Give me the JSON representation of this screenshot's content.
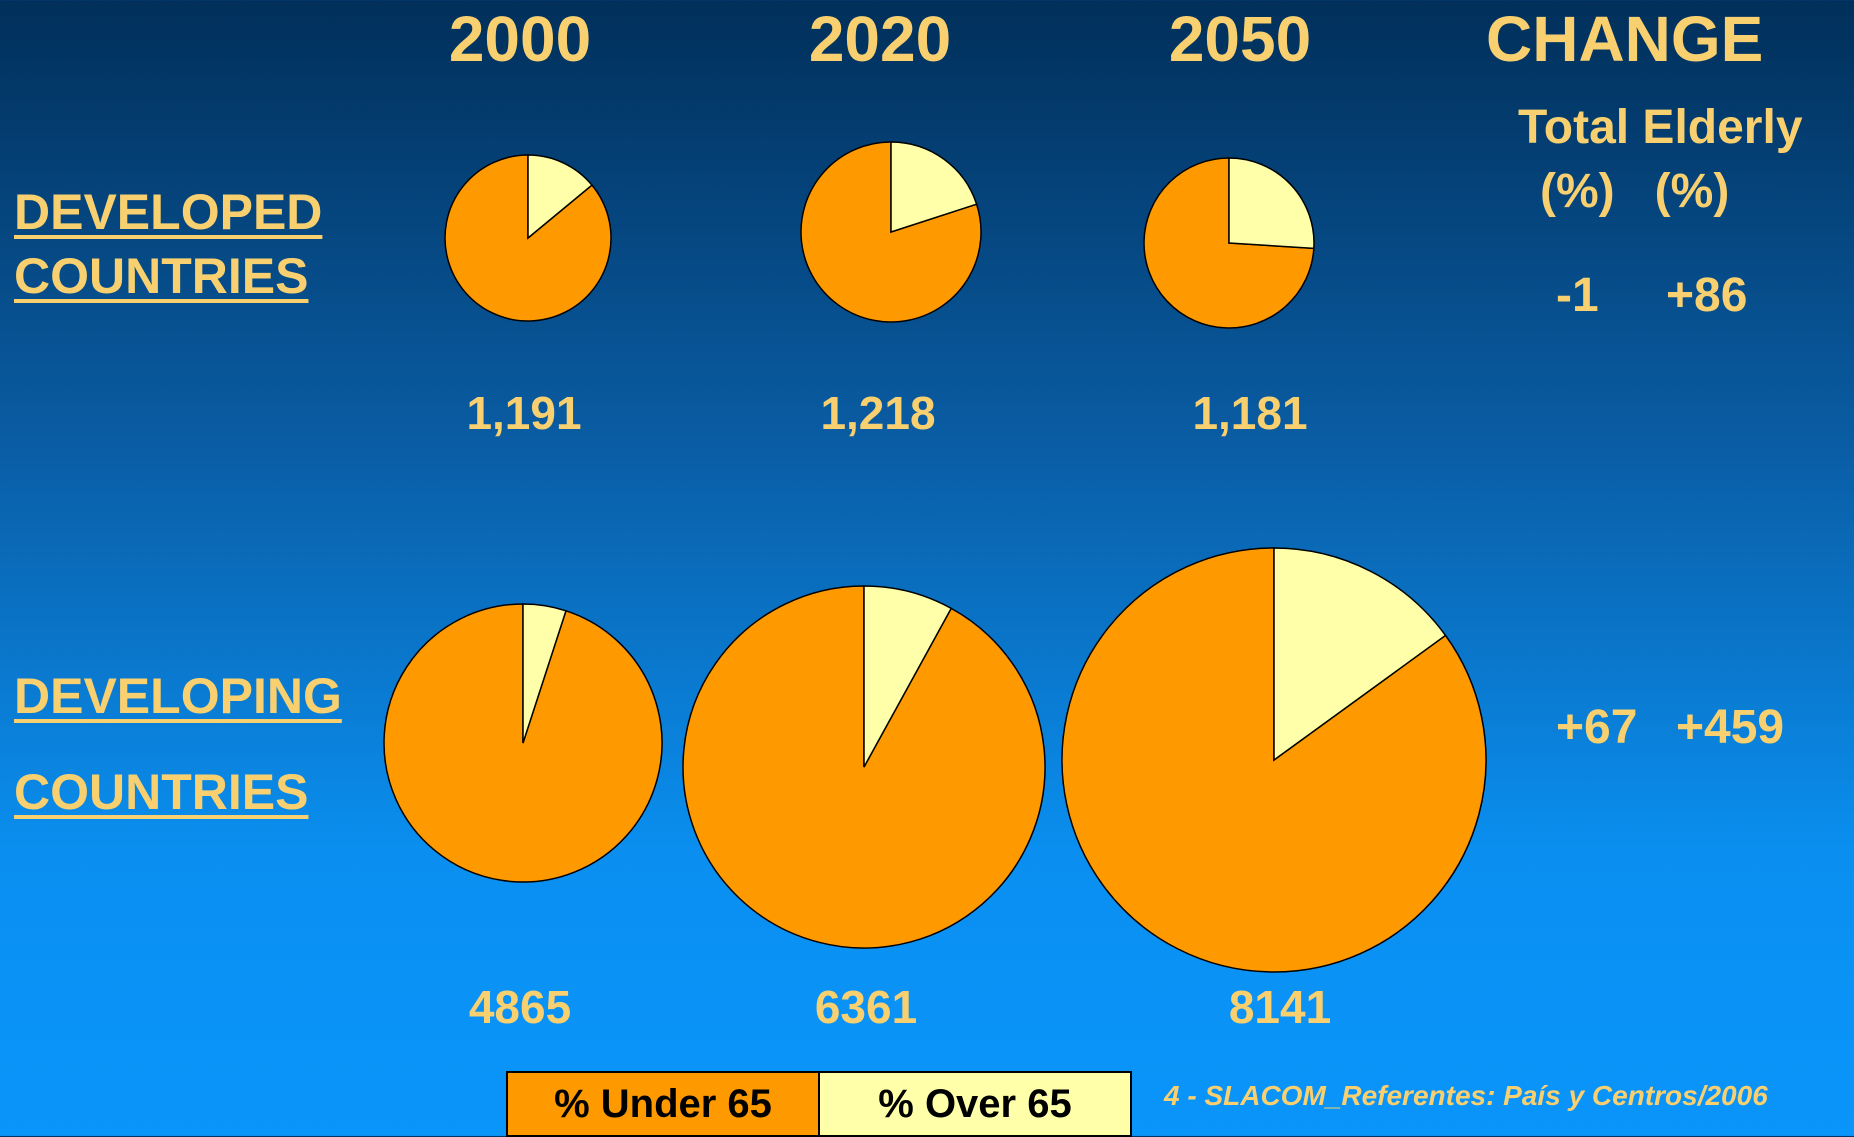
{
  "header": {
    "years": [
      "2000",
      "2020",
      "2050"
    ],
    "change_title": "CHANGE",
    "change_sub1": "Total Elderly",
    "change_sub2": "(%)   (%)"
  },
  "rows": {
    "developed": {
      "label_line1": "DEVELOPED",
      "label_line2": "COUNTRIES",
      "change_total": "-1",
      "change_elderly": "+86"
    },
    "developing": {
      "label_line1": "DEVELOPING",
      "label_line2": "COUNTRIES",
      "change_total": "+67",
      "change_elderly": "+459"
    }
  },
  "legend": {
    "under_label": "% Under 65",
    "over_label": "% Over 65"
  },
  "footer": "4 - SLACOM_Referentes: País y Centros/2006",
  "colors": {
    "under65": "#FF9900",
    "over65": "#FFFFAA",
    "text": "#F8D070"
  },
  "chart_data": [
    {
      "type": "pie",
      "group": "DEVELOPED COUNTRIES",
      "categories": [
        "2000",
        "2020",
        "2050"
      ],
      "totals": [
        "1,191",
        "1,218",
        "1,181"
      ],
      "series": [
        {
          "name": "% Under 65",
          "values": [
            86,
            80,
            74
          ]
        },
        {
          "name": "% Over 65",
          "values": [
            14,
            20,
            26
          ]
        }
      ]
    },
    {
      "type": "pie",
      "group": "DEVELOPING COUNTRIES",
      "categories": [
        "2000",
        "2020",
        "2050"
      ],
      "totals": [
        "4865",
        "6361",
        "8141"
      ],
      "series": [
        {
          "name": "% Under 65",
          "values": [
            95,
            92,
            85
          ]
        },
        {
          "name": "% Over 65",
          "values": [
            5,
            8,
            15
          ]
        }
      ]
    }
  ]
}
